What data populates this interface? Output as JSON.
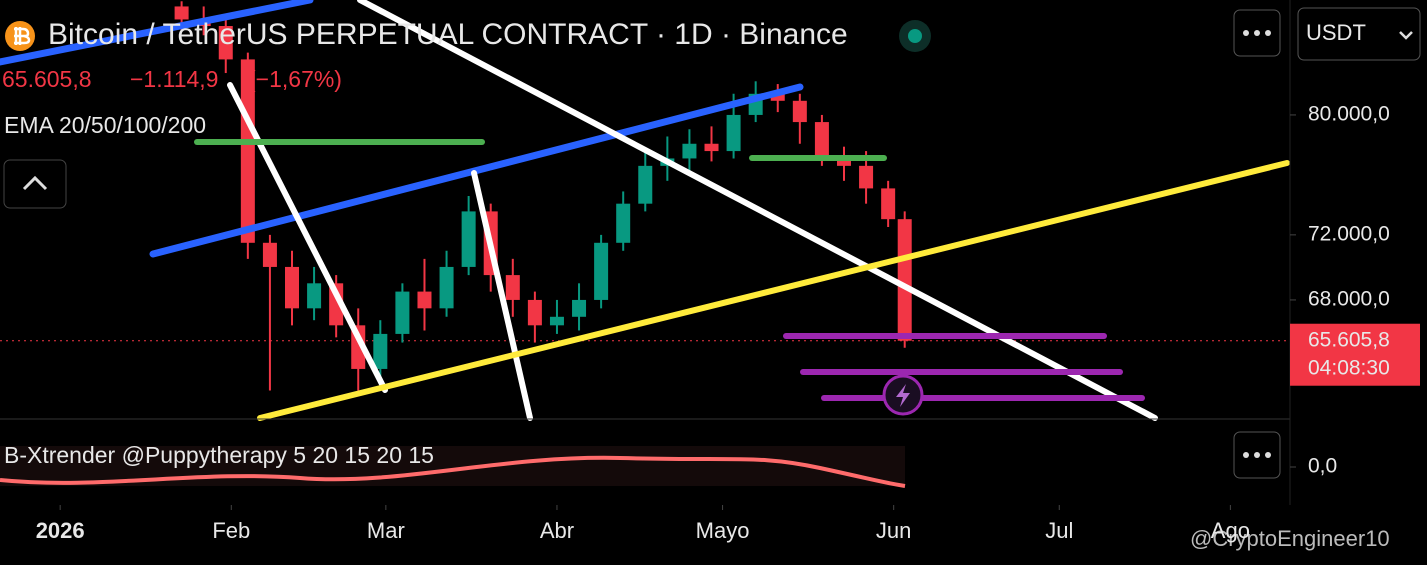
{
  "chart_data": {
    "type": "candlestick",
    "title": "Bitcoin / TetherUS PERPETUAL CONTRACT · 1D · Binance",
    "currency": "USDT",
    "last_price": {
      "value": 65605.8,
      "label": "65.605,8"
    },
    "change": {
      "value": -1114.9,
      "label": "−1.114,9"
    },
    "change_pct": {
      "value": -1.67,
      "label": "(−1,67%)"
    },
    "countdown": "04:08:30",
    "indicator_label": "EMA 20/50/100/200",
    "oscillator_label": "B-Xtrender @Puppytherapy 5 20 15 20 15",
    "watermark": "@CryptoEngineer10",
    "up_color": "#089981",
    "down_color": "#f23645",
    "ylog": true,
    "ylim": [
      61300,
      88500
    ],
    "yticks": [
      {
        "value": 80000,
        "label": "80.000,0"
      },
      {
        "value": 72000,
        "label": "72.000,0"
      },
      {
        "value": 68000,
        "label": "68.000,0"
      }
    ],
    "y2ticks": [
      {
        "value": 0,
        "label": "0,0"
      }
    ],
    "xlim": [
      -10.9,
      222.8
    ],
    "xticks": [
      {
        "value": 0,
        "label": "2026"
      },
      {
        "value": 31,
        "label": "Feb"
      },
      {
        "value": 59,
        "label": "Mar"
      },
      {
        "value": 90,
        "label": "Abr"
      },
      {
        "value": 120,
        "label": "Mayo"
      },
      {
        "value": 151,
        "label": "Jun"
      },
      {
        "value": 181,
        "label": "Jul"
      },
      {
        "value": 212,
        "label": "Ago"
      }
    ],
    "x": [
      22,
      26,
      30,
      34,
      38,
      42,
      46,
      50,
      54,
      58,
      62,
      66,
      70,
      74,
      78,
      82,
      86,
      90,
      94,
      98,
      102,
      106,
      110,
      114,
      118,
      122,
      126,
      130,
      134,
      138,
      142,
      146,
      150,
      153
    ],
    "open": [
      88000,
      87000,
      86500,
      84000,
      71500,
      70000,
      67500,
      69000,
      66500,
      64000,
      66000,
      68500,
      67500,
      70000,
      73500,
      69500,
      68000,
      66500,
      67000,
      68000,
      71500,
      74000,
      76500,
      77000,
      78000,
      77500,
      80000,
      81500,
      81000,
      79500,
      77000,
      76500,
      75000,
      73000
    ],
    "high": [
      88400,
      88000,
      87000,
      84500,
      72000,
      71000,
      70000,
      69500,
      67500,
      66800,
      69000,
      70500,
      71000,
      74500,
      74000,
      70500,
      68500,
      68000,
      69000,
      72000,
      74800,
      77500,
      78500,
      79000,
      79200,
      81500,
      82400,
      82200,
      81500,
      80000,
      77800,
      77500,
      75500,
      73500
    ],
    "low": [
      86200,
      85800,
      83000,
      70500,
      62800,
      66500,
      66800,
      65800,
      62800,
      63500,
      65500,
      66200,
      67000,
      69500,
      68500,
      67000,
      65500,
      66000,
      66200,
      67500,
      71000,
      73500,
      75500,
      76000,
      76800,
      77000,
      79500,
      80200,
      78000,
      76500,
      75500,
      74000,
      72500,
      65200
    ],
    "close": [
      87000,
      86500,
      84000,
      71500,
      70000,
      67500,
      69000,
      66500,
      64000,
      66000,
      68500,
      67500,
      70000,
      73500,
      69500,
      68000,
      66500,
      67000,
      68000,
      71500,
      74000,
      76500,
      77000,
      78000,
      77500,
      80000,
      81500,
      81000,
      79500,
      77000,
      76500,
      75000,
      73000,
      65605.8
    ]
  }
}
